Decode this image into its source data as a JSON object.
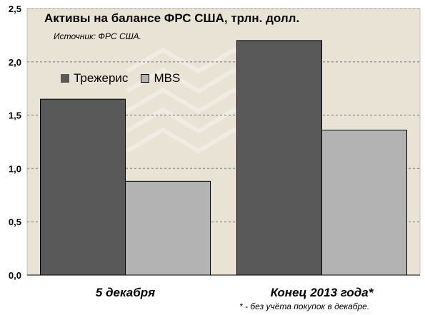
{
  "chart_data": {
    "type": "bar",
    "title": "Активы на балансе ФРС США, трлн. долл.",
    "subtitle": "Источник: ФРС США.",
    "categories": [
      "5 декабря",
      "Конец 2013 года*"
    ],
    "series": [
      {
        "name": "Трежерис",
        "values": [
          1.65,
          2.2
        ],
        "color": "#595959"
      },
      {
        "name": "MBS",
        "values": [
          0.88,
          1.36
        ],
        "color": "#b3b3b3"
      }
    ],
    "y_ticks": [
      "0,0",
      "0,5",
      "1,0",
      "1,5",
      "2,0",
      "2,5"
    ],
    "ylim": [
      0,
      2.5
    ],
    "grid": true,
    "legend_position": "top-left",
    "footnote": "* - без учёта покупок в декабре."
  },
  "colors": {
    "background": "#ffffff",
    "plot_background": "#e9e3d6",
    "treasury": "#595959",
    "mbs": "#b3b3b3",
    "gridline": "#999999"
  }
}
